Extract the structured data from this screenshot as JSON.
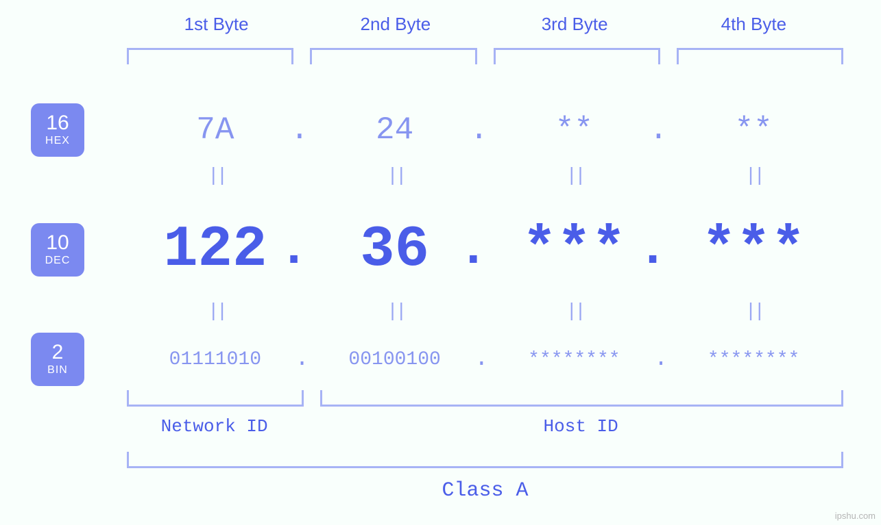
{
  "diagram": {
    "type": "infographic",
    "colors": {
      "background": "#f9fffc",
      "accent": "#4a5de8",
      "accent_light": "#8795f0",
      "bracket": "#a7b3f5",
      "badge": "#7b89f0",
      "text_light": "#9aa7f3"
    },
    "byte_headers": [
      "1st Byte",
      "2nd Byte",
      "3rd Byte",
      "4th Byte"
    ],
    "rows": {
      "hex": {
        "badge_num": "16",
        "badge_txt": "HEX",
        "values": [
          "7A",
          "24",
          "**",
          "**"
        ],
        "font_size": 46
      },
      "dec": {
        "badge_num": "10",
        "badge_txt": "DEC",
        "values": [
          "122",
          "36",
          "***",
          "***"
        ],
        "font_size": 84
      },
      "bin": {
        "badge_num": "2",
        "badge_txt": "BIN",
        "values": [
          "01111010",
          "00100100",
          "********",
          "********"
        ],
        "font_size": 28
      }
    },
    "equals_glyph": "||",
    "dot_glyph": ".",
    "net_host": {
      "network_label": "Network ID",
      "host_label": "Host ID",
      "network_span_bytes": 1,
      "host_span_bytes": 3
    },
    "class_label": "Class A",
    "watermark": "ipshu.com"
  }
}
